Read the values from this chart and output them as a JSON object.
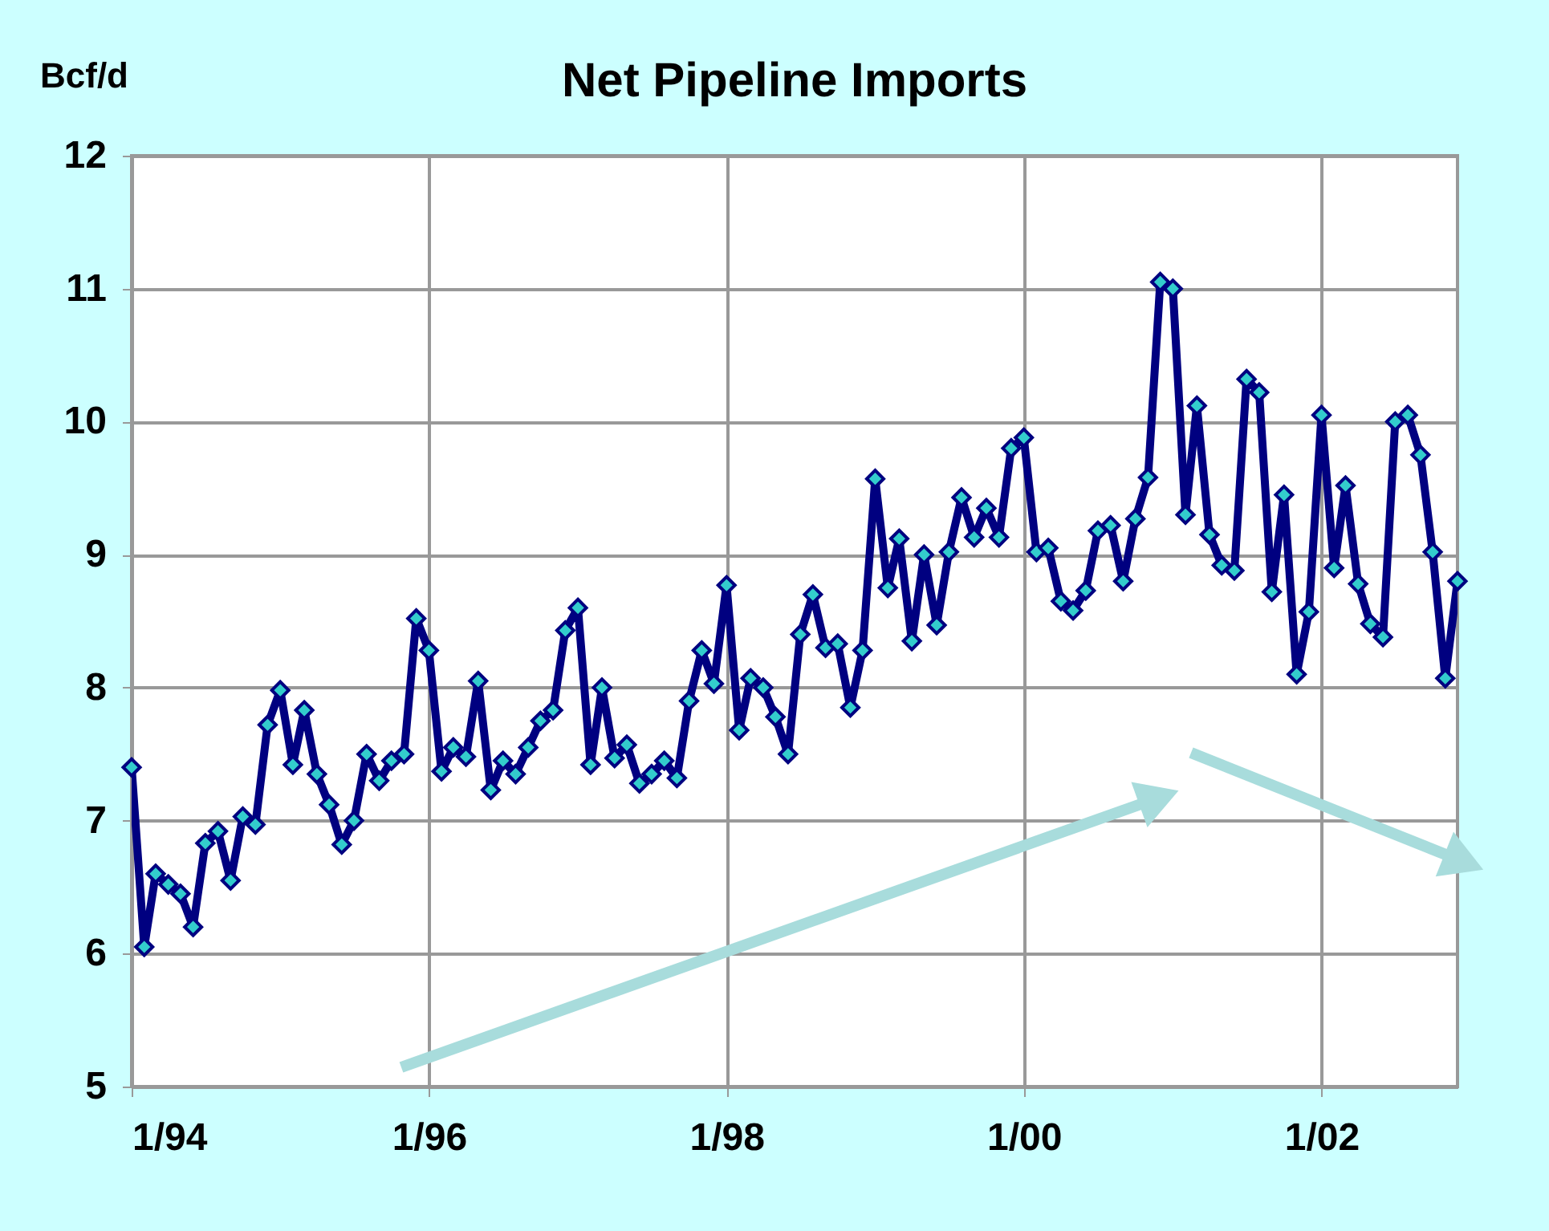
{
  "chart_data": {
    "type": "line",
    "title": "Net Pipeline Imports",
    "ylabel": "Bcf/d",
    "x": [
      "1994-01",
      "1994-02",
      "1994-03",
      "1994-04",
      "1994-05",
      "1994-06",
      "1994-07",
      "1994-08",
      "1994-09",
      "1994-10",
      "1994-11",
      "1994-12",
      "1995-01",
      "1995-02",
      "1995-03",
      "1995-04",
      "1995-05",
      "1995-06",
      "1995-07",
      "1995-08",
      "1995-09",
      "1995-10",
      "1995-11",
      "1995-12",
      "1996-01",
      "1996-02",
      "1996-03",
      "1996-04",
      "1996-05",
      "1996-06",
      "1996-07",
      "1996-08",
      "1996-09",
      "1996-10",
      "1996-11",
      "1996-12",
      "1997-01",
      "1997-02",
      "1997-03",
      "1997-04",
      "1997-05",
      "1997-06",
      "1997-07",
      "1997-08",
      "1997-09",
      "1997-10",
      "1997-11",
      "1997-12",
      "1998-01",
      "1998-02",
      "1998-03",
      "1998-04",
      "1998-05",
      "1998-06",
      "1998-07",
      "1998-08",
      "1998-09",
      "1998-10",
      "1998-11",
      "1998-12",
      "1999-01",
      "1999-02",
      "1999-03",
      "1999-04",
      "1999-05",
      "1999-06",
      "1999-07",
      "1999-08",
      "1999-09",
      "1999-10",
      "1999-11",
      "1999-12",
      "2000-01",
      "2000-02",
      "2000-03",
      "2000-04",
      "2000-05",
      "2000-06",
      "2000-07",
      "2000-08",
      "2000-09",
      "2000-10",
      "2000-11",
      "2000-12",
      "2001-01",
      "2001-02",
      "2001-03",
      "2001-04",
      "2001-05",
      "2001-06",
      "2001-07",
      "2001-08",
      "2001-09",
      "2001-10",
      "2001-11",
      "2001-12",
      "2002-01",
      "2002-02",
      "2002-03",
      "2002-04",
      "2002-05",
      "2002-06",
      "2002-07",
      "2002-08",
      "2002-09",
      "2002-10",
      "2002-11",
      "2002-12"
    ],
    "series": [
      {
        "color": "#000080",
        "values": [
          7.4,
          6.05,
          6.6,
          6.52,
          6.45,
          6.2,
          6.83,
          6.92,
          6.55,
          7.03,
          6.97,
          7.72,
          7.98,
          7.42,
          7.83,
          7.35,
          7.12,
          6.82,
          7.0,
          7.5,
          7.3,
          7.45,
          7.5,
          8.52,
          8.28,
          7.37,
          7.55,
          7.48,
          8.05,
          7.23,
          7.45,
          7.35,
          7.55,
          7.75,
          7.83,
          8.43,
          8.6,
          7.42,
          8.0,
          7.47,
          7.57,
          7.28,
          7.35,
          7.45,
          7.32,
          7.9,
          8.28,
          8.03,
          8.77,
          7.68,
          8.07,
          8.0,
          7.78,
          7.5,
          8.4,
          8.7,
          8.3,
          8.33,
          7.85,
          8.28,
          9.57,
          8.75,
          9.12,
          8.35,
          9.0,
          8.47,
          9.02,
          9.43,
          9.13,
          9.35,
          9.13,
          9.8,
          9.88,
          9.02,
          9.05,
          8.65,
          8.58,
          8.73,
          9.18,
          9.22,
          8.8,
          9.27,
          9.58,
          11.05,
          11.0,
          9.3,
          10.12,
          9.15,
          8.92,
          8.88,
          10.32,
          10.22,
          8.72,
          9.45,
          8.1,
          8.57,
          10.05,
          8.9,
          9.52,
          8.78,
          8.48,
          8.38,
          10.0,
          10.05,
          9.75,
          9.02,
          8.07,
          8.8
        ]
      }
    ],
    "marker": "diamond",
    "line_style": "solid",
    "xlim": [
      "1994-01",
      "2002-12"
    ],
    "xticks": [
      {
        "value": "1994-01",
        "label": "1/94"
      },
      {
        "value": "1996-01",
        "label": "1/96"
      },
      {
        "value": "1998-01",
        "label": "1/98"
      },
      {
        "value": "2000-01",
        "label": "1/00"
      },
      {
        "value": "2002-01",
        "label": "1/02"
      }
    ],
    "ylim": [
      5,
      12
    ],
    "yticks": [
      5,
      6,
      7,
      8,
      9,
      10,
      11,
      12
    ],
    "grid": true
  }
}
